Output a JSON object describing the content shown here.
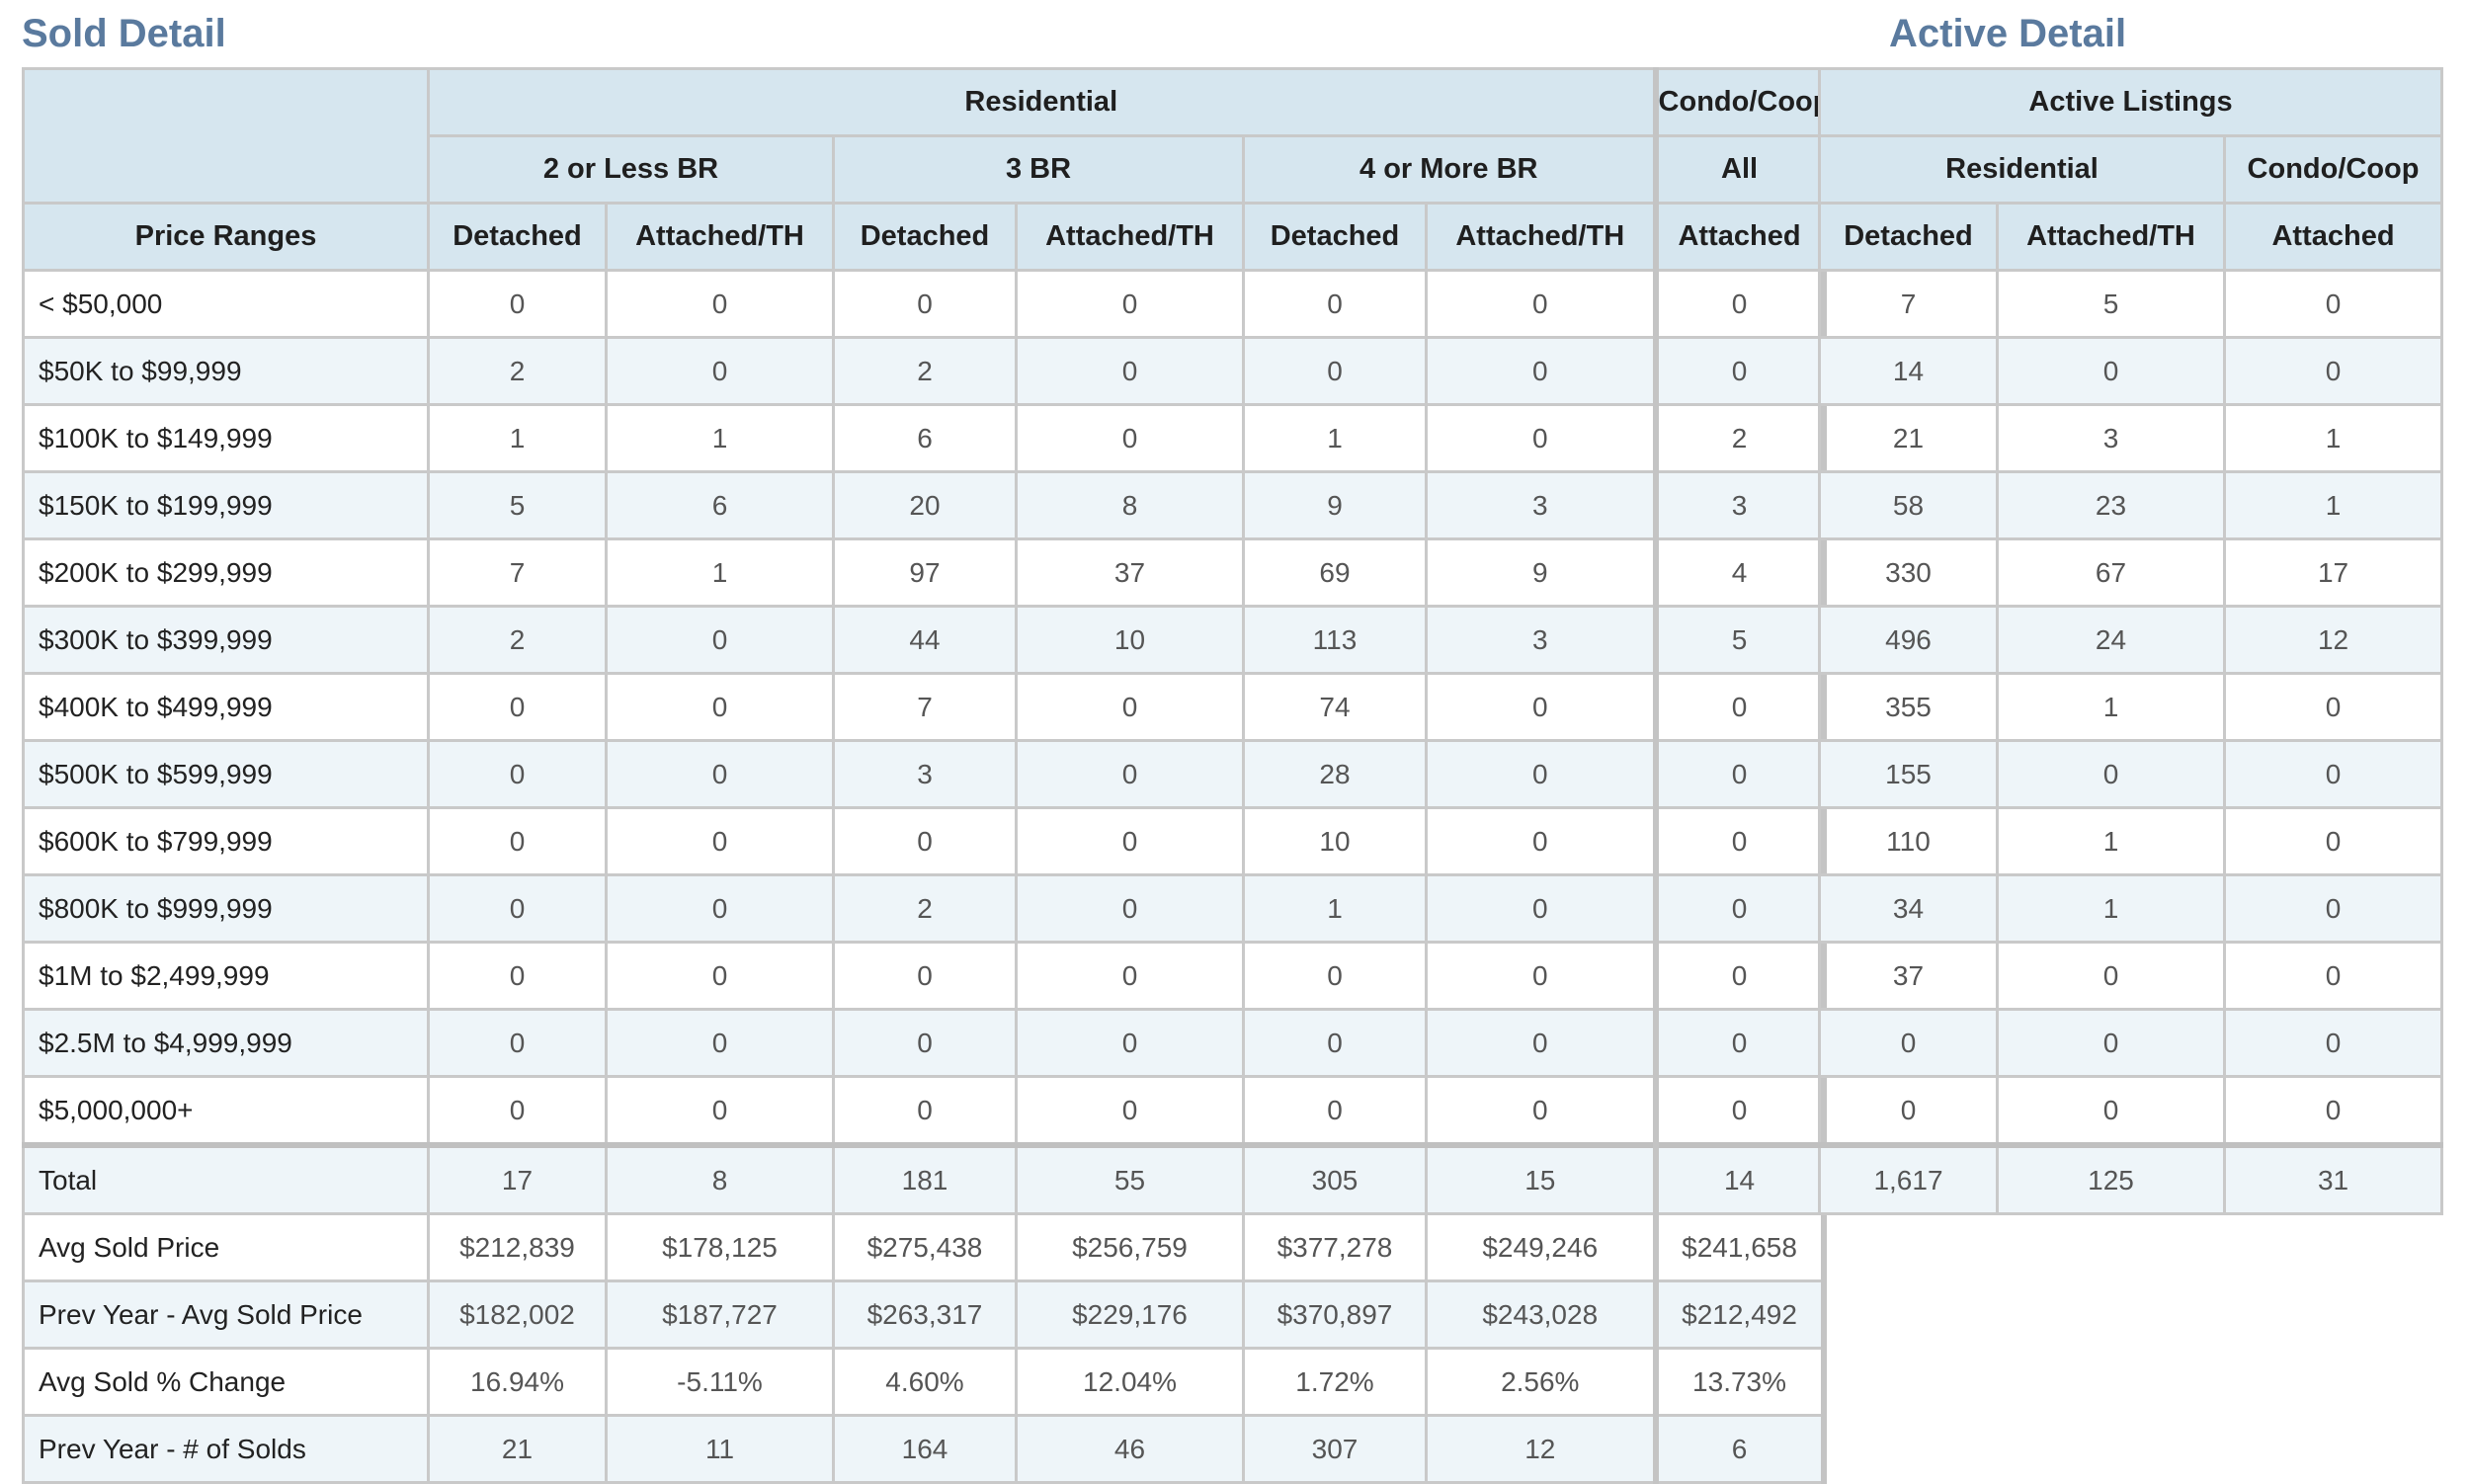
{
  "sold": {
    "title": "Sold Detail",
    "header": {
      "residential": "Residential",
      "condo": "Condo/Coop",
      "br_groups": [
        "2 or Less BR",
        "3 BR",
        "4 or More BR"
      ],
      "condo_all": "All",
      "price_ranges": "Price Ranges",
      "detached": "Detached",
      "attached_th": "Attached/TH",
      "attached": "Attached"
    },
    "rows": [
      {
        "label": "< $50,000",
        "v": [
          "0",
          "0",
          "0",
          "0",
          "0",
          "0",
          "0"
        ]
      },
      {
        "label": "$50K to $99,999",
        "v": [
          "2",
          "0",
          "2",
          "0",
          "0",
          "0",
          "0"
        ]
      },
      {
        "label": "$100K to $149,999",
        "v": [
          "1",
          "1",
          "6",
          "0",
          "1",
          "0",
          "2"
        ]
      },
      {
        "label": "$150K to $199,999",
        "v": [
          "5",
          "6",
          "20",
          "8",
          "9",
          "3",
          "3"
        ]
      },
      {
        "label": "$200K to $299,999",
        "v": [
          "7",
          "1",
          "97",
          "37",
          "69",
          "9",
          "4"
        ]
      },
      {
        "label": "$300K to $399,999",
        "v": [
          "2",
          "0",
          "44",
          "10",
          "113",
          "3",
          "5"
        ]
      },
      {
        "label": "$400K to $499,999",
        "v": [
          "0",
          "0",
          "7",
          "0",
          "74",
          "0",
          "0"
        ]
      },
      {
        "label": "$500K to $599,999",
        "v": [
          "0",
          "0",
          "3",
          "0",
          "28",
          "0",
          "0"
        ]
      },
      {
        "label": "$600K to $799,999",
        "v": [
          "0",
          "0",
          "0",
          "0",
          "10",
          "0",
          "0"
        ]
      },
      {
        "label": "$800K to $999,999",
        "v": [
          "0",
          "0",
          "2",
          "0",
          "1",
          "0",
          "0"
        ]
      },
      {
        "label": "$1M to $2,499,999",
        "v": [
          "0",
          "0",
          "0",
          "0",
          "0",
          "0",
          "0"
        ]
      },
      {
        "label": "$2.5M to $4,999,999",
        "v": [
          "0",
          "0",
          "0",
          "0",
          "0",
          "0",
          "0"
        ]
      },
      {
        "label": "$5,000,000+",
        "v": [
          "0",
          "0",
          "0",
          "0",
          "0",
          "0",
          "0"
        ]
      }
    ],
    "summary": [
      {
        "label": "Total",
        "v": [
          "17",
          "8",
          "181",
          "55",
          "305",
          "15",
          "14"
        ]
      },
      {
        "label": "Avg Sold Price",
        "v": [
          "$212,839",
          "$178,125",
          "$275,438",
          "$256,759",
          "$377,278",
          "$249,246",
          "$241,658"
        ]
      },
      {
        "label": "Prev Year - Avg Sold Price",
        "v": [
          "$182,002",
          "$187,727",
          "$263,317",
          "$229,176",
          "$370,897",
          "$243,028",
          "$212,492"
        ]
      },
      {
        "label": "Avg Sold % Change",
        "v": [
          "16.94%",
          "-5.11%",
          "4.60%",
          "12.04%",
          "1.72%",
          "2.56%",
          "13.73%"
        ]
      },
      {
        "label": "Prev Year - # of Solds",
        "v": [
          "21",
          "11",
          "164",
          "46",
          "307",
          "12",
          "6"
        ]
      }
    ]
  },
  "active": {
    "title": "Active Detail",
    "header": {
      "active_listings": "Active Listings",
      "residential": "Residential",
      "condo": "Condo/Coop",
      "detached": "Detached",
      "attached_th": "Attached/TH",
      "attached": "Attached"
    },
    "rows": [
      [
        "7",
        "5",
        "0"
      ],
      [
        "14",
        "0",
        "0"
      ],
      [
        "21",
        "3",
        "1"
      ],
      [
        "58",
        "23",
        "1"
      ],
      [
        "330",
        "67",
        "17"
      ],
      [
        "496",
        "24",
        "12"
      ],
      [
        "355",
        "1",
        "0"
      ],
      [
        "155",
        "0",
        "0"
      ],
      [
        "110",
        "1",
        "0"
      ],
      [
        "34",
        "1",
        "0"
      ],
      [
        "37",
        "0",
        "0"
      ],
      [
        "0",
        "0",
        "0"
      ],
      [
        "0",
        "0",
        "0"
      ]
    ],
    "total": [
      "1,617",
      "125",
      "31"
    ]
  }
}
